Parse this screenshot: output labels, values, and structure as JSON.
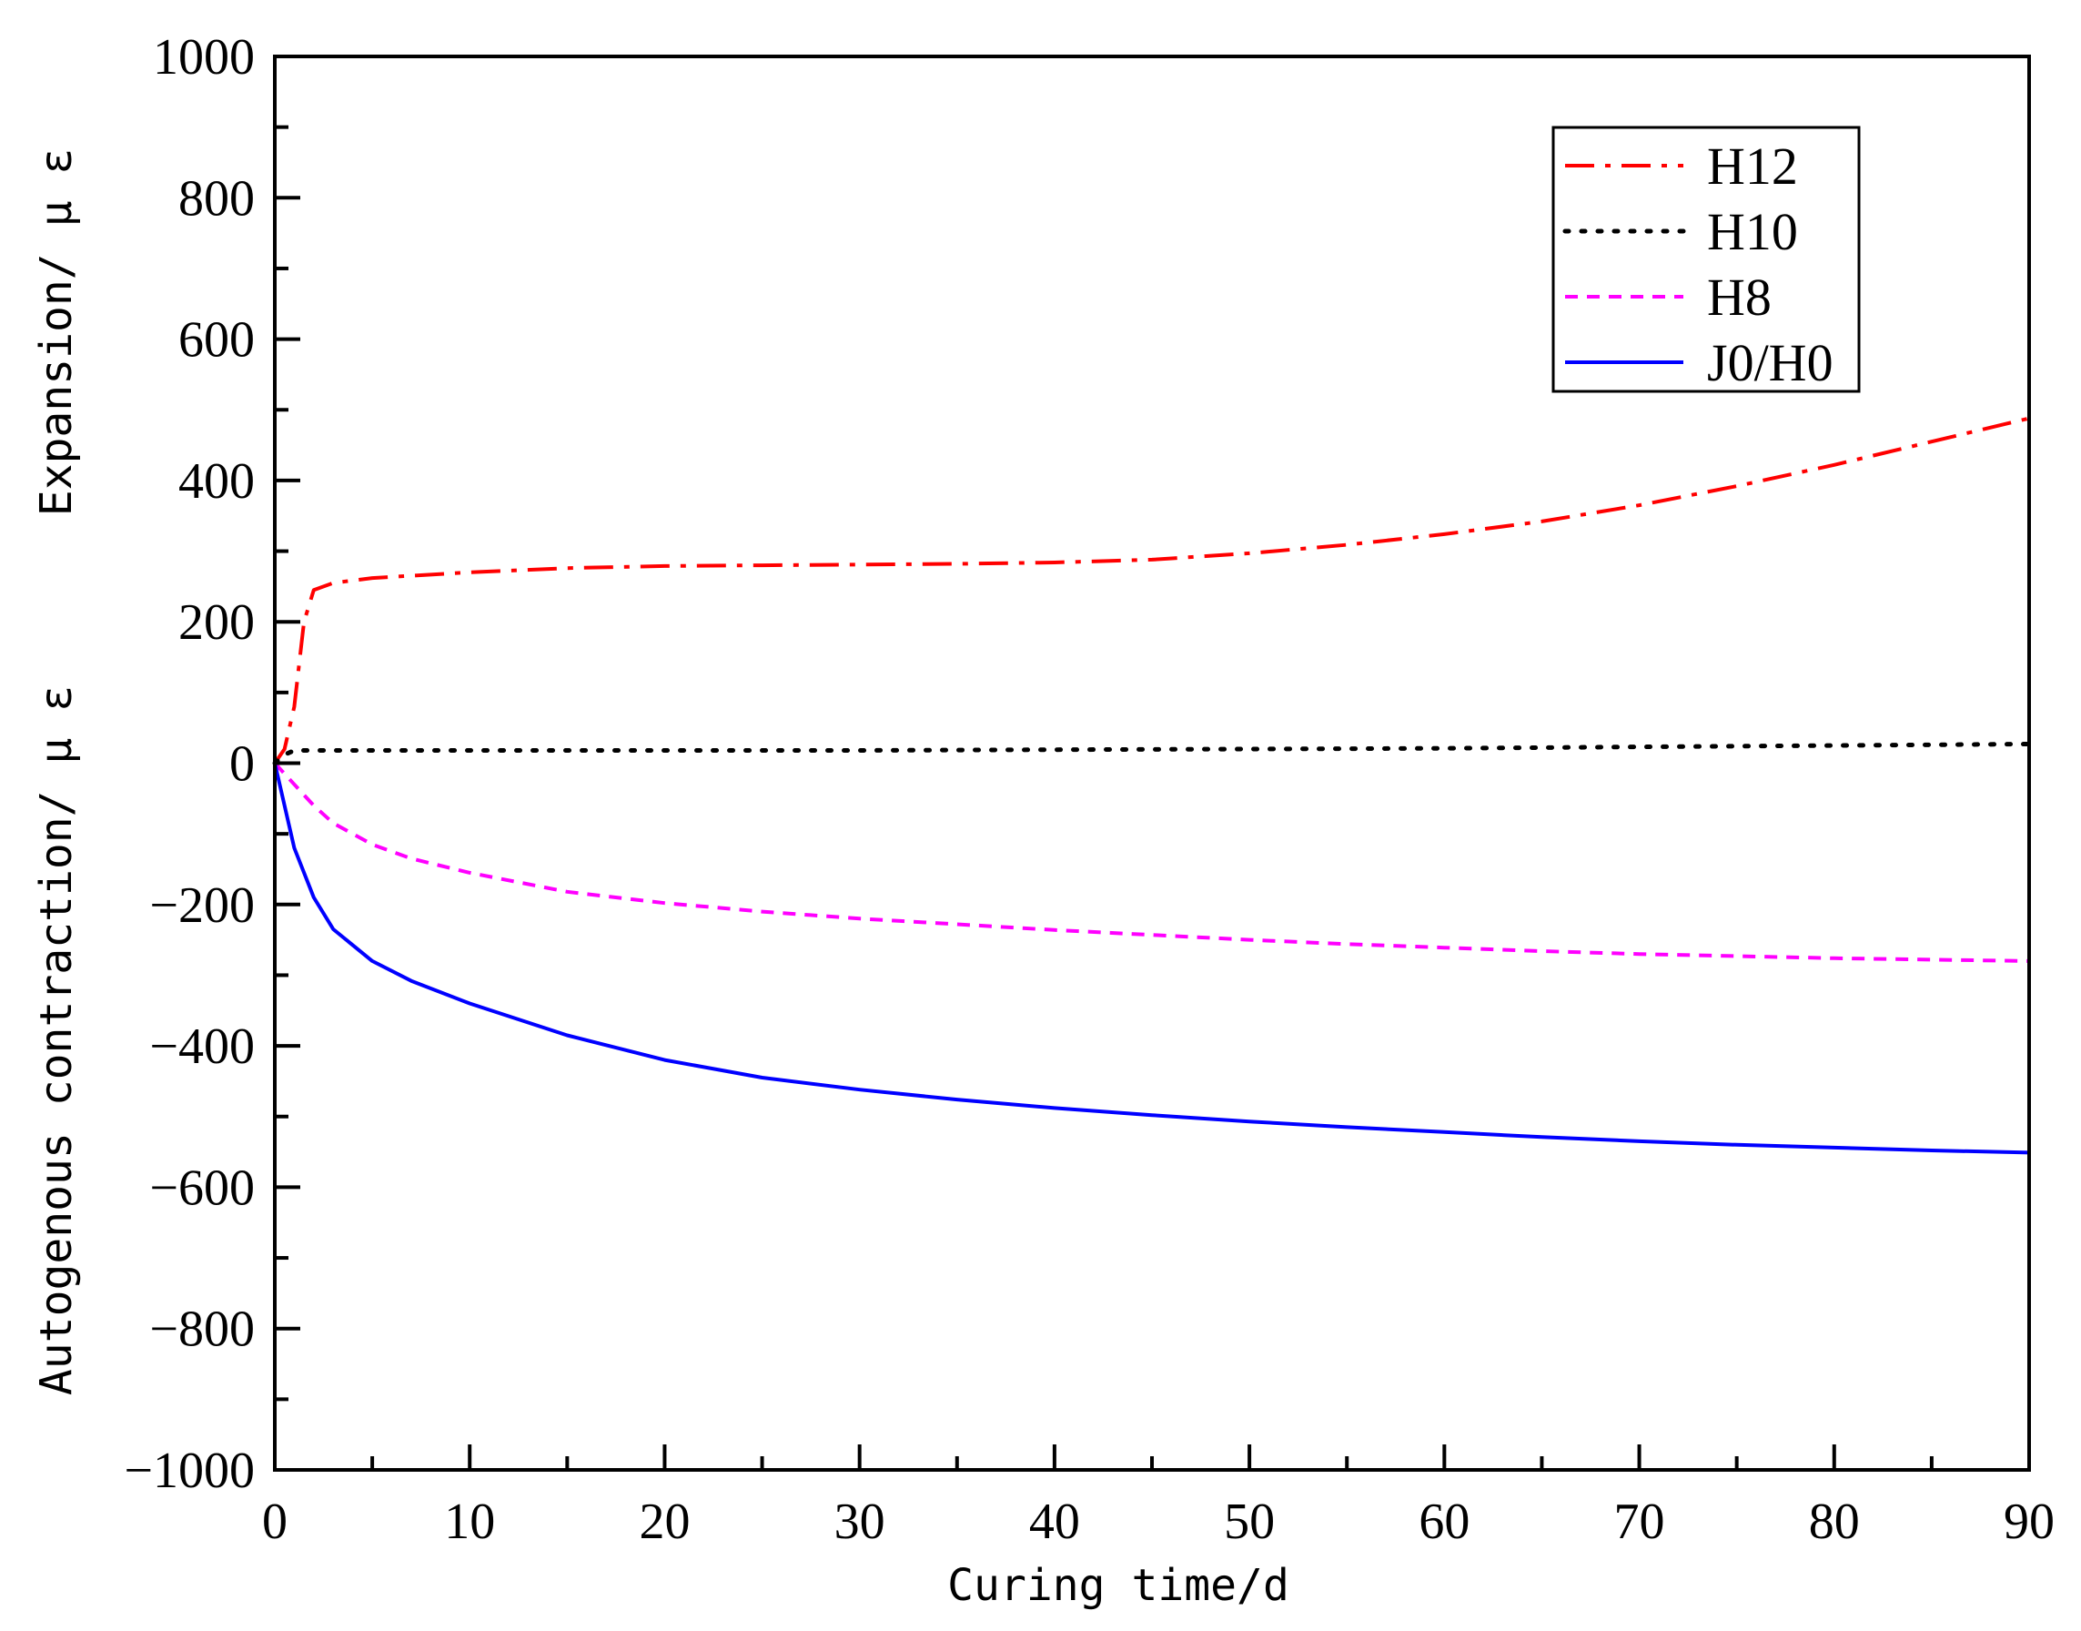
{
  "chart_data": {
    "type": "line",
    "title": "",
    "xlabel": "Curing time/d",
    "ylabel_lower": "Autogenous contraction/ μ ε",
    "ylabel_upper": "Expansion/ μ ε",
    "xlim": [
      0,
      90
    ],
    "ylim": [
      -1000,
      1000
    ],
    "xticks": [
      0,
      10,
      20,
      30,
      40,
      50,
      60,
      70,
      80,
      90
    ],
    "xtick_labels": [
      "0",
      "10",
      "20",
      "30",
      "40",
      "50",
      "60",
      "70",
      "80",
      "90"
    ],
    "yticks": [
      -1000,
      -800,
      -600,
      -400,
      -200,
      0,
      200,
      400,
      600,
      800,
      1000
    ],
    "ytick_labels": [
      "−1000",
      "−800",
      "−600",
      "−400",
      "−200",
      "0",
      "200",
      "400",
      "600",
      "800",
      "1000"
    ],
    "grid": false,
    "legend_position": "top-right",
    "series": [
      {
        "name": "H12",
        "color": "#ff0000",
        "style": "dashdot",
        "x": [
          0,
          0.5,
          1,
          1.5,
          2,
          3,
          5,
          10,
          15,
          20,
          25,
          30,
          35,
          40,
          45,
          50,
          55,
          60,
          65,
          70,
          75,
          80,
          85,
          90
        ],
        "y": [
          0,
          20,
          80,
          200,
          245,
          255,
          262,
          270,
          276,
          279,
          280,
          281,
          282,
          284,
          288,
          297,
          309,
          324,
          342,
          365,
          392,
          422,
          455,
          488
        ]
      },
      {
        "name": "H10",
        "color": "#000000",
        "style": "dotted",
        "x": [
          0,
          0.5,
          1,
          2,
          5,
          10,
          20,
          30,
          40,
          50,
          60,
          70,
          80,
          90
        ],
        "y": [
          0,
          12,
          18,
          18,
          18,
          18,
          18,
          18,
          19,
          20,
          21,
          23,
          25,
          27
        ]
      },
      {
        "name": "H8",
        "color": "#ff00ff",
        "style": "dashed",
        "x": [
          0,
          1,
          2,
          3,
          5,
          7,
          10,
          15,
          20,
          25,
          30,
          35,
          40,
          45,
          50,
          55,
          60,
          65,
          70,
          75,
          80,
          85,
          90
        ],
        "y": [
          0,
          -30,
          -60,
          -85,
          -115,
          -135,
          -155,
          -182,
          -198,
          -210,
          -220,
          -228,
          -236,
          -243,
          -250,
          -256,
          -261,
          -266,
          -270,
          -273,
          -276,
          -278,
          -280
        ]
      },
      {
        "name": "J0/H0",
        "color": "#0000ff",
        "style": "solid",
        "x": [
          0,
          0.5,
          1,
          2,
          3,
          5,
          7,
          10,
          15,
          20,
          25,
          30,
          35,
          40,
          45,
          50,
          55,
          60,
          65,
          70,
          75,
          80,
          85,
          90
        ],
        "y": [
          0,
          -60,
          -120,
          -190,
          -235,
          -280,
          -308,
          -340,
          -385,
          -420,
          -445,
          -462,
          -476,
          -488,
          -498,
          -507,
          -515,
          -522,
          -529,
          -535,
          -540,
          -544,
          -548,
          -551
        ]
      }
    ]
  }
}
